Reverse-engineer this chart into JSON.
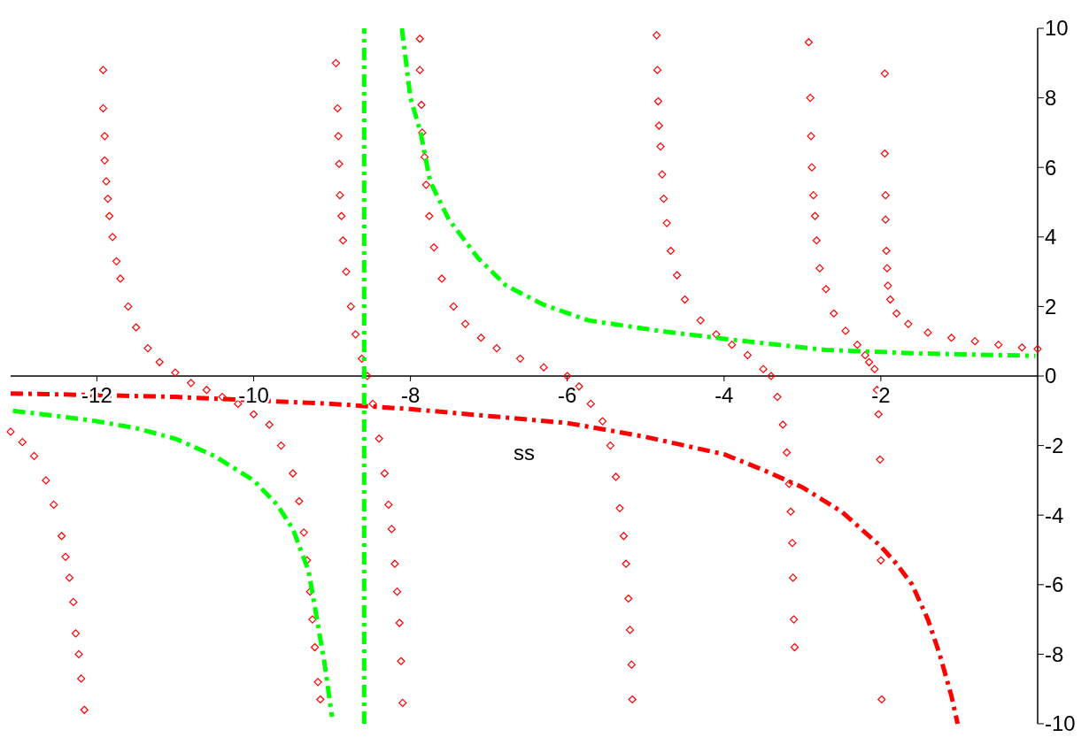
{
  "chart_data": {
    "type": "line",
    "xlabel": "ss",
    "xlim": [
      -13.1,
      0
    ],
    "ylim": [
      -10,
      10
    ],
    "xticks": [
      -12,
      -10,
      -8,
      -6,
      -4,
      -2
    ],
    "yticks": [
      -10,
      -8,
      -6,
      -4,
      -2,
      0,
      2,
      4,
      6,
      8,
      10
    ],
    "grid": false,
    "line_style": "dashed",
    "series": [
      {
        "type": "scatter",
        "marker": "diamond",
        "color": "#ff0000",
        "x": [
          -13.1,
          -12.95,
          -12.8,
          -12.65,
          -12.55,
          -12.45,
          -12.4,
          -12.35,
          -12.3,
          -12.27,
          -12.23,
          -12.2,
          -12.16,
          -11.92,
          -11.92,
          -11.9,
          -11.9,
          -11.88,
          -11.86,
          -11.84,
          -11.8,
          -11.75,
          -11.7,
          -11.6,
          -11.5,
          -11.35,
          -11.2,
          -11.0,
          -10.8,
          -10.6,
          -10.4,
          -10.2,
          -10.0,
          -9.8,
          -9.65,
          -9.5,
          -9.42,
          -9.36,
          -9.32,
          -9.28,
          -9.25,
          -9.22,
          -9.18,
          -9.15,
          -8.95,
          -8.93,
          -8.92,
          -8.91,
          -8.9,
          -8.88,
          -8.86,
          -8.82,
          -8.76,
          -8.7,
          -8.62,
          -8.55,
          -8.48,
          -8.4,
          -8.33,
          -8.28,
          -8.24,
          -8.2,
          -8.17,
          -8.14,
          -8.12,
          -8.1,
          -7.88,
          -7.88,
          -7.86,
          -7.85,
          -7.82,
          -7.8,
          -7.76,
          -7.7,
          -7.6,
          -7.45,
          -7.3,
          -7.1,
          -6.9,
          -6.6,
          -6.3,
          -6.0,
          -5.85,
          -5.7,
          -5.55,
          -5.45,
          -5.38,
          -5.33,
          -5.28,
          -5.25,
          -5.22,
          -5.2,
          -5.18,
          -5.17,
          -4.86,
          -4.85,
          -4.84,
          -4.83,
          -4.81,
          -4.79,
          -4.77,
          -4.73,
          -4.68,
          -4.6,
          -4.5,
          -4.3,
          -4.1,
          -3.9,
          -3.7,
          -3.5,
          -3.4,
          -3.32,
          -3.25,
          -3.2,
          -3.17,
          -3.15,
          -3.13,
          -3.12,
          -3.11,
          -3.1,
          -2.92,
          -2.9,
          -2.89,
          -2.88,
          -2.86,
          -2.84,
          -2.82,
          -2.78,
          -2.7,
          -2.6,
          -2.45,
          -2.3,
          -2.2,
          -2.15,
          -2.08,
          -2.05,
          -2.03,
          -2.01,
          -2.0,
          -1.99,
          -1.95,
          -1.95,
          -1.94,
          -1.94,
          -1.93,
          -1.92,
          -1.91,
          -1.88,
          -1.8,
          -1.65,
          -1.4,
          -1.1,
          -0.8,
          -0.5,
          -0.2,
          0
        ],
        "values": [
          -1.6,
          -1.9,
          -2.3,
          -3.0,
          -3.7,
          -4.6,
          -5.2,
          -5.8,
          -6.5,
          -7.4,
          -8.0,
          -8.7,
          -9.6,
          8.8,
          7.7,
          6.9,
          6.2,
          5.6,
          5.1,
          4.6,
          4.0,
          3.3,
          2.8,
          2.0,
          1.4,
          0.8,
          0.4,
          0.1,
          -0.2,
          -0.4,
          -0.6,
          -0.8,
          -1.1,
          -1.4,
          -2.0,
          -2.8,
          -3.6,
          -4.5,
          -5.3,
          -6.2,
          -7.0,
          -7.8,
          -8.8,
          -9.3,
          9.0,
          7.7,
          6.9,
          6.1,
          5.2,
          4.6,
          3.9,
          3.0,
          2.0,
          1.2,
          0.5,
          0,
          -0.8,
          -1.8,
          -2.8,
          -3.7,
          -4.4,
          -5.4,
          -6.2,
          -7.1,
          -8.2,
          -9.4,
          9.7,
          8.8,
          7.8,
          7.0,
          6.3,
          5.5,
          4.6,
          3.7,
          2.8,
          2.0,
          1.5,
          1.1,
          0.8,
          0.5,
          0.25,
          0,
          -0.3,
          -0.8,
          -1.3,
          -2.0,
          -2.9,
          -3.8,
          -4.6,
          -5.4,
          -6.4,
          -7.3,
          -8.3,
          -9.3,
          9.8,
          8.8,
          7.9,
          7.2,
          6.6,
          5.8,
          5.1,
          4.4,
          3.6,
          2.9,
          2.2,
          1.6,
          1.2,
          0.9,
          0.6,
          0.2,
          0,
          -0.6,
          -1.4,
          -2.2,
          -3.1,
          -3.9,
          -4.8,
          -5.8,
          -7.0,
          -7.8,
          9.6,
          8.0,
          6.9,
          6.0,
          5.2,
          4.6,
          3.9,
          3.1,
          2.5,
          1.8,
          1.3,
          0.9,
          0.6,
          0.4,
          0.2,
          -0.4,
          -1.1,
          -2.4,
          -5.3,
          -9.3,
          8.7,
          6.4,
          5.2,
          4.5,
          3.6,
          3.1,
          2.6,
          2.2,
          1.8,
          1.5,
          1.25,
          1.1,
          1.0,
          0.9,
          0.82,
          0.78
        ]
      },
      {
        "color": "#ff0000",
        "x": [
          -13.1,
          -12,
          -11,
          -10,
          -9,
          -8,
          -7,
          -6,
          -5,
          -4,
          -3.5,
          -3,
          -2.5,
          -2,
          -1.8,
          -1.6,
          -1.4,
          -1.25,
          -1.1,
          -1.02
        ],
        "values": [
          -0.5,
          -0.55,
          -0.6,
          -0.7,
          -0.8,
          -0.95,
          -1.15,
          -1.35,
          -1.75,
          -2.25,
          -2.7,
          -3.2,
          -3.9,
          -4.9,
          -5.4,
          -6.0,
          -7.0,
          -8.0,
          -9.2,
          -10.0
        ]
      },
      {
        "color": "#00ff00",
        "x": [
          -13.07,
          -12.5,
          -12,
          -11.5,
          -11,
          -10.5,
          -10,
          -9.7,
          -9.5,
          -9.3,
          -9.2,
          -9.1,
          -9.0,
          -8.8,
          -8.59,
          -8.59,
          -8.3,
          -8.11,
          -8.0,
          -7.87,
          -7.75,
          -7.51,
          -7.14,
          -6.78,
          -6.3,
          -5.73,
          -4.83,
          -3.92,
          -2.7,
          -1.49,
          -0.03
        ],
        "values": [
          -1.0,
          -1.15,
          -1.3,
          -1.5,
          -1.8,
          -2.3,
          -3.0,
          -3.7,
          -4.4,
          -5.6,
          -6.9,
          -8.2,
          -9.8,
          null,
          -10,
          10,
          null,
          10.0,
          8.0,
          7.0,
          5.6,
          4.5,
          3.4,
          2.6,
          2.05,
          1.6,
          1.3,
          1.05,
          0.75,
          0.65,
          0.58
        ]
      }
    ]
  }
}
